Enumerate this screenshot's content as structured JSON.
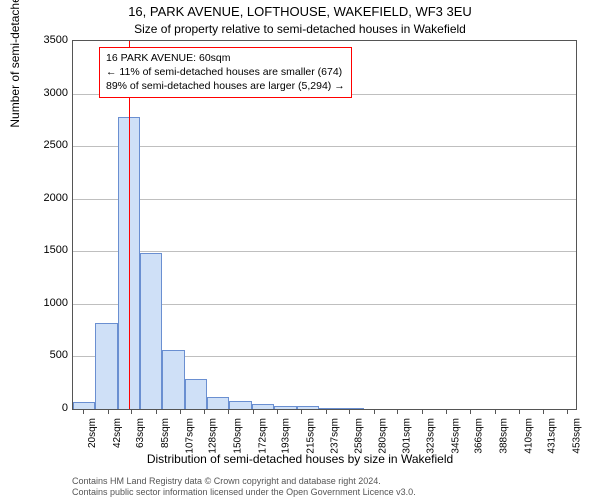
{
  "title_main": "16, PARK AVENUE, LOFTHOUSE, WAKEFIELD, WF3 3EU",
  "title_sub": "Size of property relative to semi-detached houses in Wakefield",
  "yaxis_label": "Number of semi-detached properties",
  "xaxis_label": "Distribution of semi-detached houses by size in Wakefield",
  "plot": {
    "background": "#ffffff",
    "border_color": "#555555",
    "grid_color": "#bfbfbf",
    "bar_fill": "#cfe0f7",
    "bar_stroke": "#6a8fd1",
    "ref_line_color": "#ff0000",
    "ylim": [
      0,
      3500
    ],
    "ytick_step": 500,
    "x_min": 10,
    "x_max": 460,
    "ref_x": 60,
    "x_ticks": [
      20,
      42,
      63,
      85,
      107,
      128,
      150,
      172,
      193,
      215,
      237,
      258,
      280,
      301,
      323,
      345,
      366,
      388,
      410,
      431,
      453
    ],
    "x_tick_unit": "sqm",
    "bars": [
      {
        "x0": 10,
        "x1": 30,
        "y": 70
      },
      {
        "x0": 30,
        "x1": 50,
        "y": 820
      },
      {
        "x0": 50,
        "x1": 70,
        "y": 2780
      },
      {
        "x0": 70,
        "x1": 90,
        "y": 1480
      },
      {
        "x0": 90,
        "x1": 110,
        "y": 560
      },
      {
        "x0": 110,
        "x1": 130,
        "y": 290
      },
      {
        "x0": 130,
        "x1": 150,
        "y": 110
      },
      {
        "x0": 150,
        "x1": 170,
        "y": 80
      },
      {
        "x0": 170,
        "x1": 190,
        "y": 50
      },
      {
        "x0": 190,
        "x1": 210,
        "y": 30
      },
      {
        "x0": 210,
        "x1": 230,
        "y": 30
      },
      {
        "x0": 230,
        "x1": 250,
        "y": 10
      },
      {
        "x0": 250,
        "x1": 270,
        "y": 10
      }
    ]
  },
  "annotation": {
    "line1": "16 PARK AVENUE: 60sqm",
    "line2": "← 11% of semi-detached houses are smaller (674)",
    "line3": "89% of semi-detached houses are larger (5,294) →",
    "border_color": "#ff0000",
    "bg": "#ffffff"
  },
  "credits": {
    "line1": "Contains HM Land Registry data © Crown copyright and database right 2024.",
    "line2": "Contains public sector information licensed under the Open Government Licence v3.0."
  },
  "fonts": {
    "title_main_size": 13,
    "title_sub_size": 12,
    "axis_label_size": 12,
    "tick_label_size": 11,
    "xtick_label_size": 10,
    "annotation_size": 10.5,
    "credits_size": 9
  }
}
